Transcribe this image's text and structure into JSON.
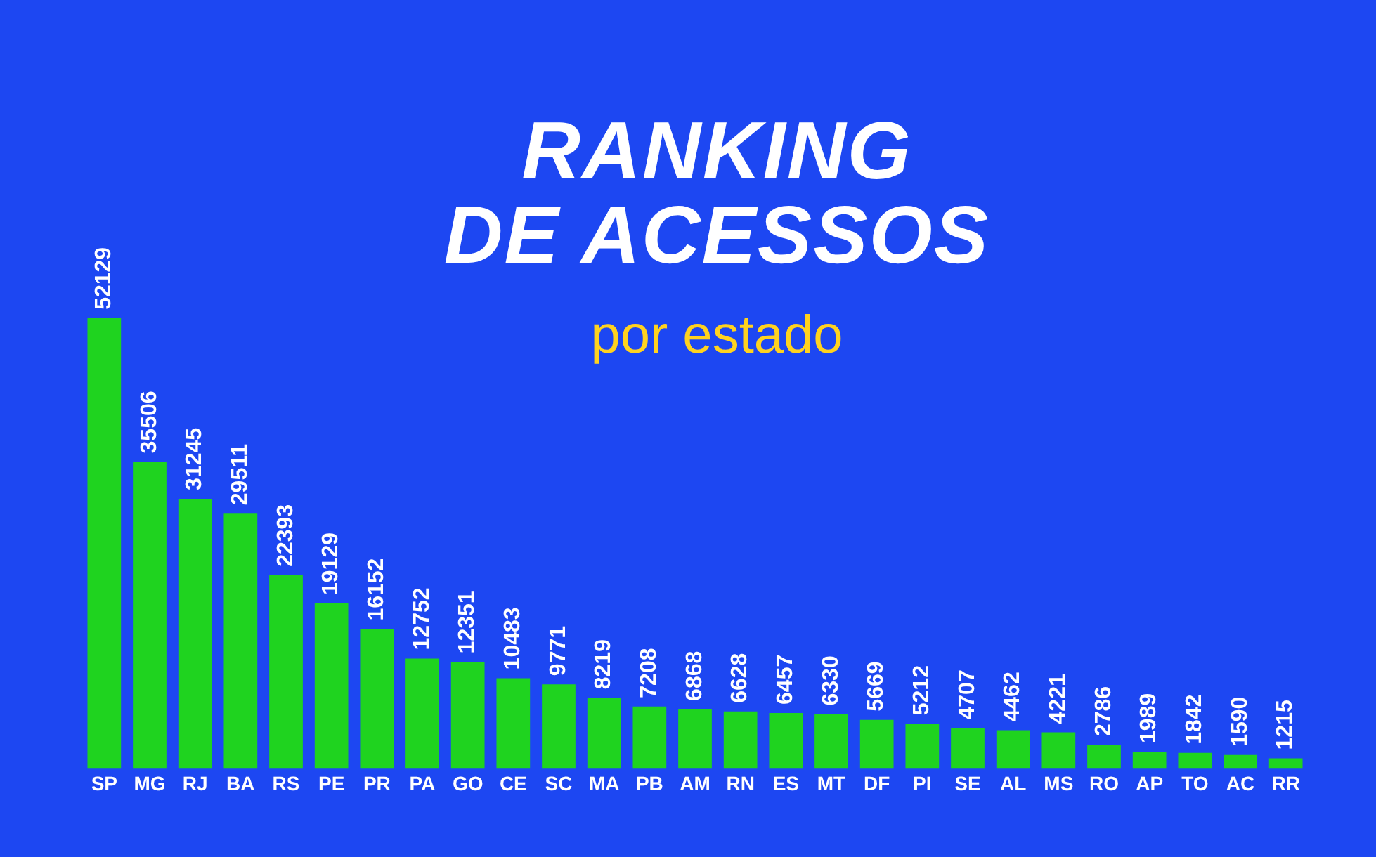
{
  "chart_data": {
    "type": "bar",
    "title": "RANKING DE ACESSOS",
    "subtitle": "por estado",
    "categories": [
      "SP",
      "MG",
      "RJ",
      "BA",
      "RS",
      "PE",
      "PR",
      "PA",
      "GO",
      "CE",
      "SC",
      "MA",
      "PB",
      "AM",
      "RN",
      "ES",
      "MT",
      "DF",
      "PI",
      "SE",
      "AL",
      "MS",
      "RO",
      "AP",
      "TO",
      "AC",
      "RR"
    ],
    "values": [
      52129,
      35506,
      31245,
      29511,
      22393,
      19129,
      16152,
      12752,
      12351,
      10483,
      9771,
      8219,
      7208,
      6868,
      6628,
      6457,
      6330,
      5669,
      5212,
      4707,
      4462,
      4221,
      2786,
      1989,
      1842,
      1590,
      1215
    ],
    "color": "#1fd31f",
    "data_labels": true,
    "grid": false,
    "legend": false
  }
}
